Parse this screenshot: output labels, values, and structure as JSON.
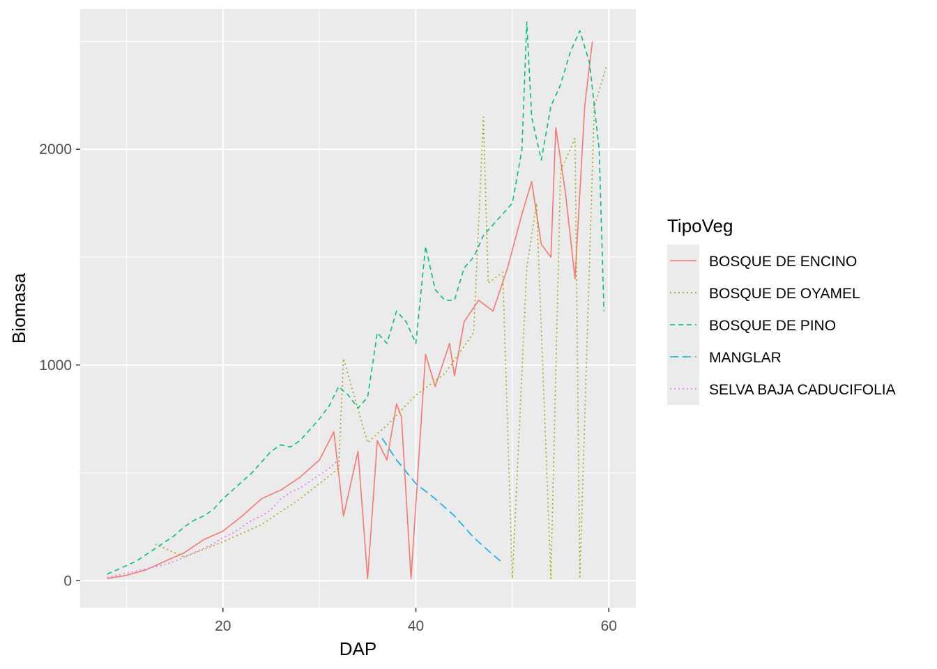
{
  "chart_data": {
    "type": "line",
    "title": "",
    "xlabel": "DAP",
    "ylabel": "Biomasa",
    "xlim": [
      5.2,
      62.8
    ],
    "ylim": [
      -125,
      2650
    ],
    "x_ticks": [
      20,
      40,
      60
    ],
    "x_tick_labels": [
      "20",
      "40",
      "60"
    ],
    "y_ticks": [
      0,
      1000,
      2000
    ],
    "y_tick_labels": [
      "0",
      "1000",
      "2000"
    ],
    "grid": true,
    "panel_background": "#EBEBEB",
    "legend": {
      "title": "TipoVeg",
      "position": "right"
    },
    "series": [
      {
        "name": "BOSQUE DE ENCINO",
        "color": "#F8766D",
        "linetype": "solid",
        "x": [
          8.0,
          10.0,
          12.0,
          14.0,
          16.0,
          18.0,
          20.0,
          22.0,
          24.0,
          26.0,
          28.0,
          30.0,
          31.5,
          32.5,
          34.0,
          35.0,
          36.0,
          37.0,
          38.0,
          38.5,
          39.5,
          41.0,
          42.0,
          43.5,
          44.0,
          45.0,
          46.5,
          48.0,
          49.5,
          51.0,
          52.0,
          53.0,
          54.0,
          54.5,
          55.5,
          56.5,
          57.5,
          58.3
        ],
        "y": [
          10,
          25,
          50,
          90,
          130,
          190,
          230,
          300,
          380,
          420,
          480,
          560,
          690,
          300,
          600,
          10,
          650,
          560,
          820,
          760,
          10,
          1050,
          900,
          1100,
          950,
          1200,
          1300,
          1250,
          1450,
          1700,
          1850,
          1560,
          1500,
          2100,
          1800,
          1400,
          2200,
          2500
        ]
      },
      {
        "name": "BOSQUE DE OYAMEL",
        "color": "#A3A500",
        "linetype": "dotted",
        "x": [
          13.0,
          16.0,
          20.0,
          24.0,
          28.0,
          32.0,
          32.5,
          35.0,
          37.0,
          40.0,
          43.0,
          46.0,
          47.0,
          47.5,
          49.0,
          50.0,
          51.5,
          52.5,
          54.0,
          55.0,
          56.5,
          57.0,
          58.5,
          59.8
        ],
        "y": [
          170,
          110,
          180,
          260,
          380,
          520,
          1030,
          640,
          720,
          860,
          960,
          1150,
          2150,
          1380,
          1430,
          10,
          1450,
          1750,
          10,
          1900,
          2050,
          10,
          2200,
          2390
        ]
      },
      {
        "name": "BOSQUE DE PINO",
        "color": "#00BF7D",
        "linetype": "dashed",
        "x": [
          8.0,
          9.0,
          10.0,
          11.0,
          12.0,
          13.0,
          14.0,
          15.0,
          16.0,
          17.0,
          18.0,
          19.0,
          20.0,
          21.0,
          22.0,
          23.0,
          24.0,
          25.0,
          26.0,
          27.0,
          28.0,
          29.0,
          30.0,
          31.0,
          32.0,
          33.0,
          34.0,
          35.0,
          36.0,
          37.0,
          38.0,
          39.0,
          40.0,
          41.0,
          42.0,
          43.0,
          44.0,
          45.0,
          46.0,
          47.0,
          48.0,
          49.0,
          50.0,
          51.0,
          51.5,
          52.0,
          53.0,
          54.0,
          55.0,
          56.0,
          57.0,
          58.0,
          59.0,
          59.5
        ],
        "y": [
          30,
          50,
          70,
          90,
          120,
          150,
          180,
          210,
          250,
          280,
          300,
          330,
          380,
          420,
          460,
          500,
          550,
          600,
          630,
          620,
          650,
          700,
          750,
          810,
          900,
          860,
          800,
          850,
          1150,
          1100,
          1250,
          1200,
          1100,
          1550,
          1350,
          1300,
          1300,
          1450,
          1500,
          1600,
          1650,
          1700,
          1750,
          2000,
          2590,
          2150,
          1950,
          2200,
          2300,
          2450,
          2550,
          2400,
          2000,
          1250
        ]
      },
      {
        "name": "MANGLAR",
        "color": "#00B0F6",
        "linetype": "longdash",
        "x": [
          36.5,
          38.0,
          40.0,
          42.0,
          44.0,
          46.0,
          48.0,
          48.8
        ],
        "y": [
          660,
          560,
          450,
          380,
          300,
          200,
          120,
          90
        ]
      },
      {
        "name": "SELVA BAJA CADUCIFOLIA",
        "color": "#E76BF3",
        "linetype": "dotted",
        "x": [
          8.0,
          9.0,
          10.0,
          11.0,
          12.0,
          13.0,
          14.0,
          15.0,
          16.0,
          17.0,
          18.0,
          19.0,
          20.0,
          21.0,
          22.0,
          23.0,
          24.0,
          25.0,
          26.0,
          27.0,
          28.0,
          29.0,
          30.0,
          31.0,
          32.0
        ],
        "y": [
          15,
          25,
          35,
          45,
          55,
          65,
          75,
          90,
          110,
          130,
          150,
          170,
          200,
          220,
          250,
          280,
          300,
          330,
          380,
          410,
          430,
          460,
          490,
          520,
          560
        ]
      }
    ]
  }
}
